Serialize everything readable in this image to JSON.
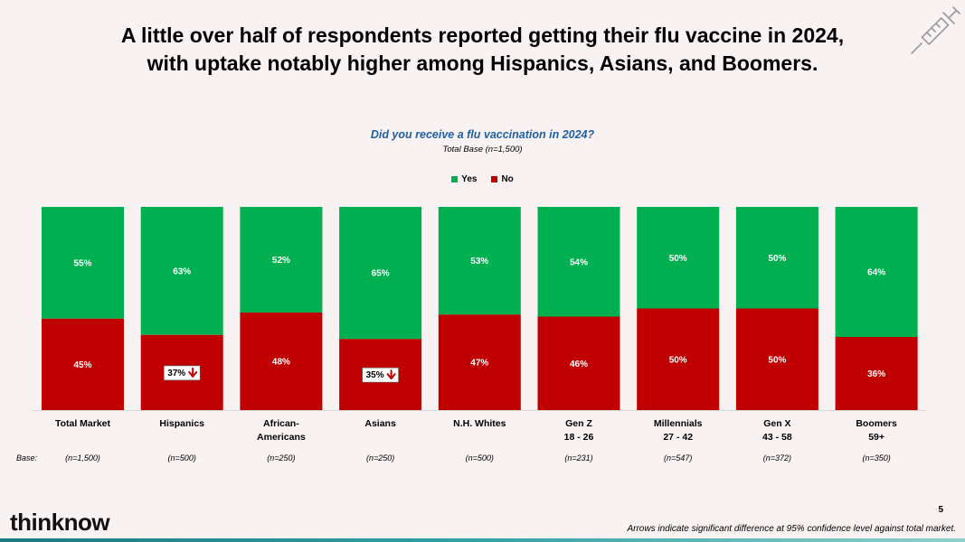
{
  "slide": {
    "title_line1": "A little over half of respondents reported getting their flu vaccine in 2024,",
    "title_line2": "with uptake notably higher among Hispanics, Asians, and Boomers.",
    "footnote": "Arrows indicate significant difference at 95% confidence level against total market.",
    "page_number": "5",
    "logo_text": "thinknow",
    "base_label": "Base:"
  },
  "colors": {
    "yes": "#00b050",
    "no": "#c00000",
    "question": "#1f5fa3",
    "arrow": "#c00000"
  },
  "chart_data": {
    "type": "bar",
    "stacked": true,
    "percent_stacked": true,
    "title": "Did you receive a flu vaccination in 2024?",
    "subtitle": "Total Base (n=1,500)",
    "legend": [
      "Yes",
      "No"
    ],
    "legend_position": "top",
    "categories": [
      {
        "line1": "Total Market",
        "line2": "",
        "base": "(n=1,500)"
      },
      {
        "line1": "Hispanics",
        "line2": "",
        "base": "(n=500)"
      },
      {
        "line1": "African-",
        "line2": "Americans",
        "base": "(n=250)"
      },
      {
        "line1": "Asians",
        "line2": "",
        "base": "(n=250)"
      },
      {
        "line1": "N.H. Whites",
        "line2": "",
        "base": "(n=500)"
      },
      {
        "line1": "Gen Z",
        "line2": "18 - 26",
        "base": "(n=231)"
      },
      {
        "line1": "Millennials",
        "line2": "27 - 42",
        "base": "(n=547)"
      },
      {
        "line1": "Gen X",
        "line2": "43 - 58",
        "base": "(n=372)"
      },
      {
        "line1": "Boomers",
        "line2": "59+",
        "base": "(n=350)"
      }
    ],
    "series": [
      {
        "name": "No",
        "values": [
          45,
          37,
          48,
          35,
          47,
          46,
          50,
          50,
          36
        ],
        "labels": [
          "45%",
          "37%",
          "48%",
          "35%",
          "47%",
          "46%",
          "50%",
          "50%",
          "36%"
        ],
        "sig_down": [
          false,
          true,
          false,
          true,
          false,
          false,
          false,
          false,
          false
        ]
      },
      {
        "name": "Yes",
        "values": [
          55,
          63,
          52,
          65,
          53,
          54,
          50,
          50,
          64
        ],
        "labels": [
          "55%",
          "63%",
          "52%",
          "65%",
          "53%",
          "54%",
          "50%",
          "50%",
          "64%"
        ]
      }
    ],
    "ylim": [
      0,
      100
    ]
  }
}
